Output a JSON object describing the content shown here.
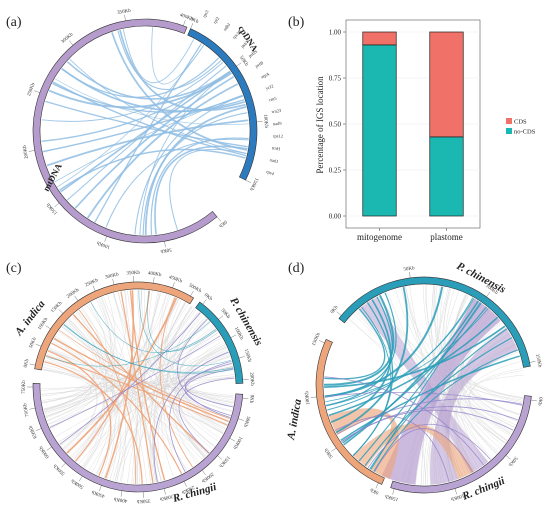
{
  "panels": {
    "a": {
      "label": "(a)",
      "segments": [
        "mtDNA",
        "cpDNA"
      ],
      "mt_ticks": [
        "0Kb",
        "50Kb",
        "100Kb",
        "150Kb",
        "200Kb",
        "250Kb",
        "300Kb",
        "350Kb",
        "400Kb"
      ],
      "cp_ticks": [
        "0Kb",
        "50Kb",
        "100Kb",
        "150Kb"
      ],
      "genes": [
        "rps3",
        "rpl2",
        "ndhJ",
        "rps19",
        "psbT",
        "psbN",
        "petB",
        "atpA",
        "ycf2",
        "rrn5",
        "rrn23",
        "nad9",
        "rps12",
        "trnH",
        "nad1",
        "rps4"
      ]
    },
    "b": {
      "label": "(b)",
      "ylabel": "Percentage of IGS location",
      "legend": [
        "CDS",
        "no-CDS"
      ]
    },
    "c": {
      "label": "(c)",
      "segments": [
        "A. indica",
        "P. chinensis",
        "R. chingii"
      ],
      "ticks_a": [
        "0Kb",
        "50Kb",
        "100Kb",
        "150Kb",
        "200Kb",
        "250Kb",
        "300Kb",
        "350Kb",
        "400Kb",
        "450Kb",
        "500Kb"
      ],
      "ticks_p": [
        "0Kb",
        "50Kb",
        "100Kb",
        "150Kb",
        "200Kb"
      ],
      "ticks_r": [
        "0Kb",
        "50Kb",
        "100Kb",
        "150Kb",
        "200Kb",
        "250Kb",
        "300Kb",
        "350Kb",
        "400Kb",
        "450Kb",
        "500Kb",
        "550Kb",
        "600Kb",
        "650Kb",
        "700Kb",
        "750Kb"
      ]
    },
    "d": {
      "label": "(d)",
      "segments": [
        "A. indica",
        "P. chinensis",
        "R. chingii"
      ],
      "ticks_a": [
        "0Kb",
        "50Kb",
        "100Kb",
        "150Kb"
      ],
      "ticks_p": [
        "0Kb",
        "50Kb",
        "100Kb",
        "150Kb"
      ],
      "ticks_r": [
        "0Kb",
        "50Kb",
        "100Kb",
        "150Kb"
      ]
    }
  },
  "colors": {
    "mt": "#b59ccc",
    "cp": "#2d7bbf",
    "link_blue": "#8fbde3",
    "aindica": "#eda57c",
    "pchinensis": "#2a9db8",
    "rchingii": "#b9a3d2",
    "cds": "#f07167",
    "nocds": "#1ab8b0",
    "link_gray": "#d8d8d8",
    "link_purple": "#8f80c9",
    "link_orange": "#f0a276"
  },
  "chart_data": {
    "type": "bar",
    "categories": [
      "mitogenome",
      "plastome"
    ],
    "series": [
      {
        "name": "no-CDS",
        "values": [
          0.93,
          0.43
        ]
      },
      {
        "name": "CDS",
        "values": [
          0.07,
          0.57
        ]
      }
    ],
    "ylabel": "Percentage of IGS location",
    "ylim": [
      0,
      1
    ],
    "yticks": [
      "0.00",
      "0.25",
      "0.50",
      "0.75",
      "1.00"
    ],
    "legend_position": "right"
  }
}
